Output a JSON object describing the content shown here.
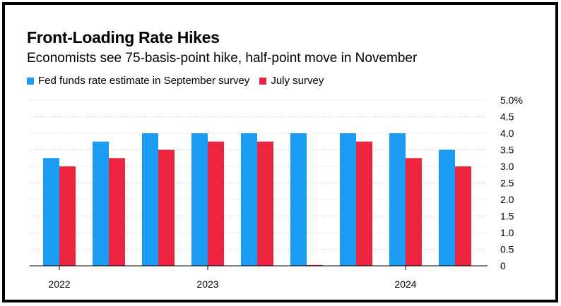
{
  "title": "Front-Loading Rate Hikes",
  "subtitle": "Economists see 75-basis-point hike, half-point move in November",
  "colors": {
    "september": "#1a9cf5",
    "july": "#ec2440",
    "grid": "#c8c8c8"
  },
  "chart_data": {
    "type": "bar",
    "title": "Front-Loading Rate Hikes",
    "subtitle": "Economists see 75-basis-point hike, half-point move in November",
    "ylim": [
      0,
      5
    ],
    "yticks": [
      "0",
      "0.5",
      "1.0",
      "1.5",
      "2.0",
      "2.5",
      "3.0",
      "3.5",
      "4.0",
      "4.5",
      "5.0%"
    ],
    "x_labels": [
      {
        "label": "2022",
        "group": 0
      },
      {
        "label": "2023",
        "group": 3
      },
      {
        "label": "2024",
        "group": 7
      }
    ],
    "legend_position": "top-left",
    "grid": true,
    "series": [
      {
        "name": "Fed funds rate estimate in September survey",
        "values": [
          3.25,
          3.75,
          4.0,
          4.0,
          4.0,
          4.0,
          4.0,
          4.0,
          3.5
        ]
      },
      {
        "name": "July survey",
        "values": [
          3.0,
          3.25,
          3.5,
          3.75,
          3.75,
          0,
          3.75,
          3.25,
          3.0
        ]
      }
    ]
  }
}
